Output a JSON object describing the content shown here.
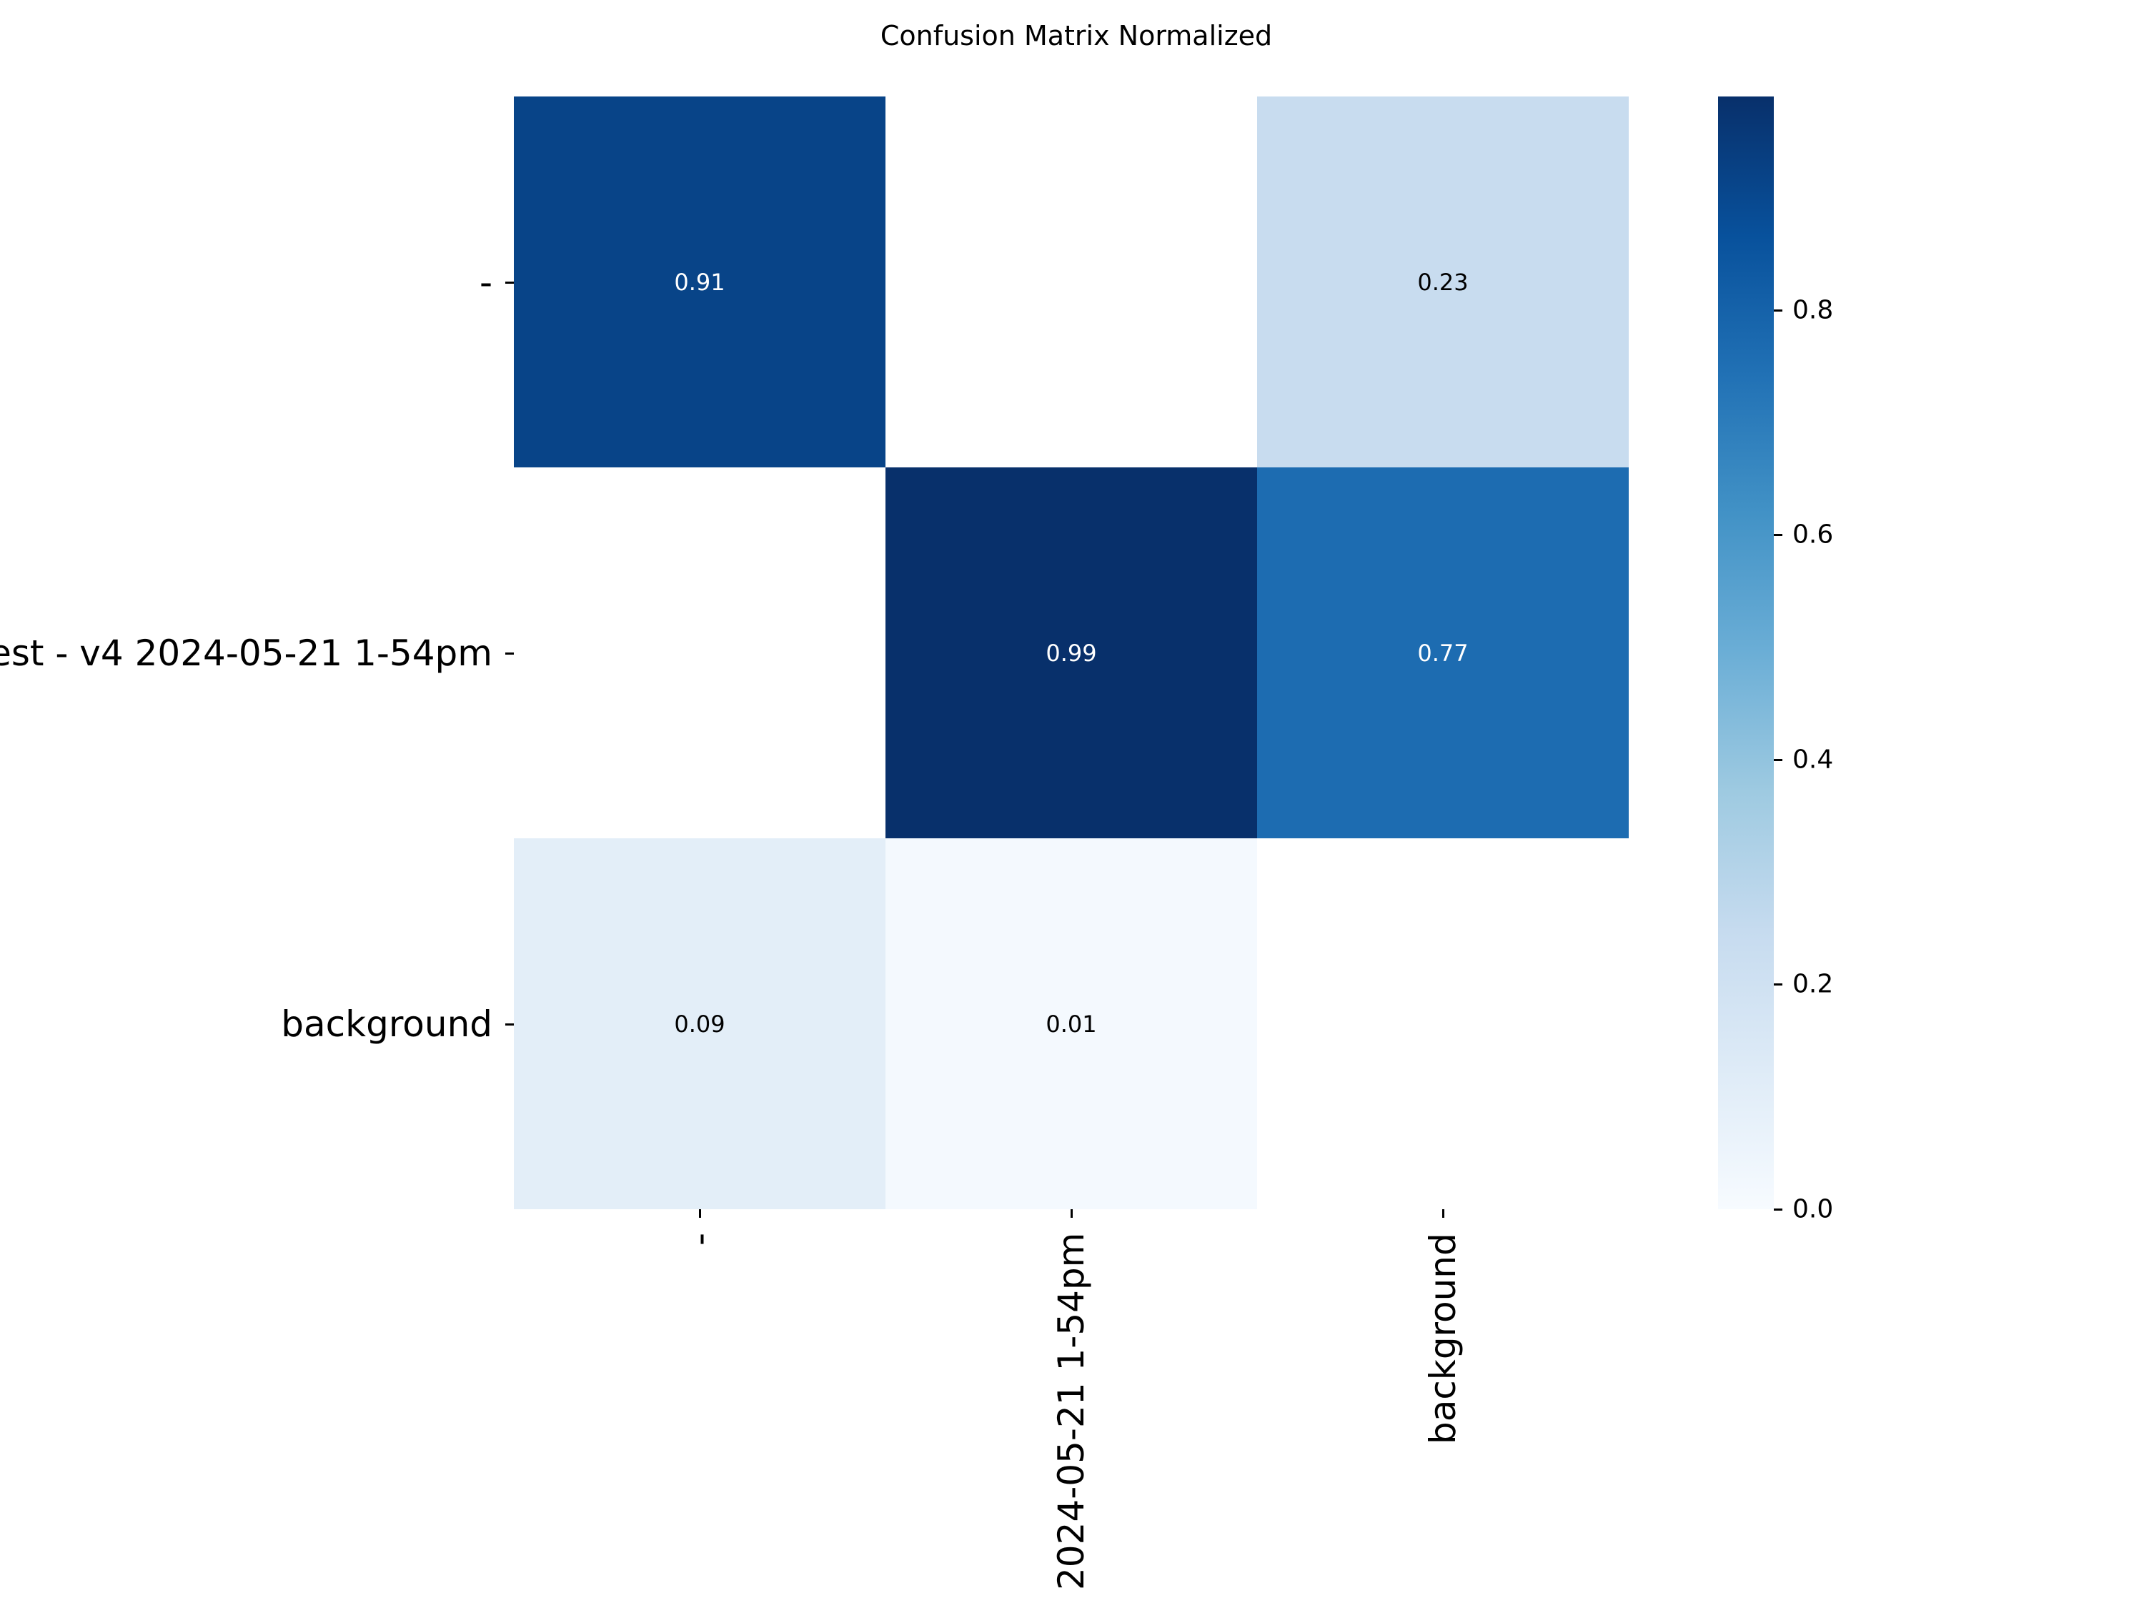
{
  "chart_data": {
    "type": "heatmap",
    "title": "Confusion Matrix Normalized",
    "xlabel": "",
    "ylabel": "",
    "row_labels": [
      "-",
      "est - v4 2024-05-21 1-54pm",
      "background"
    ],
    "col_labels": [
      "-",
      "2024-05-21 1-54pm",
      "background"
    ],
    "matrix": [
      [
        0.91,
        null,
        0.23
      ],
      [
        null,
        0.99,
        0.77
      ],
      [
        0.09,
        0.01,
        null
      ]
    ],
    "cell_text": [
      [
        "0.91",
        "",
        "0.23"
      ],
      [
        "",
        "0.99",
        "0.77"
      ],
      [
        "0.09",
        "0.01",
        ""
      ]
    ],
    "colormap": "Blues",
    "colorbar": {
      "range": [
        0.0,
        0.99
      ],
      "ticks": [
        "0.0",
        "0.2",
        "0.4",
        "0.6",
        "0.8"
      ]
    },
    "cell_colors": [
      [
        "#084488",
        "#ffffff",
        "#c8dcef"
      ],
      [
        "#ffffff",
        "#08306b",
        "#1d6cb1"
      ],
      [
        "#e3eef8",
        "#f4f9fe",
        "#ffffff"
      ]
    ],
    "text_colors": [
      [
        "#ffffff",
        "#000000",
        "#000000"
      ],
      [
        "#000000",
        "#ffffff",
        "#ffffff"
      ],
      [
        "#000000",
        "#000000",
        "#000000"
      ]
    ],
    "grid": false,
    "legend": "colorbar right"
  }
}
